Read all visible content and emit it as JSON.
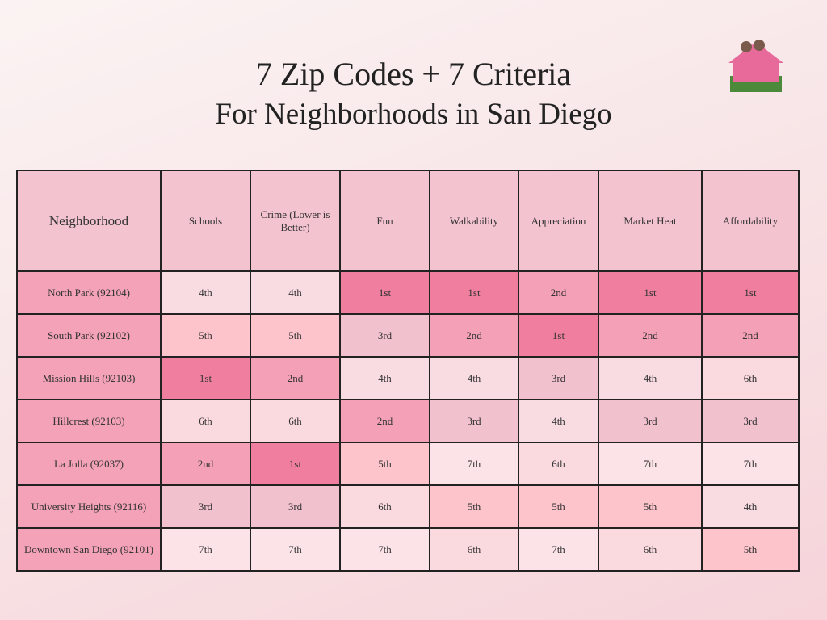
{
  "header": {
    "title": "7 Zip Codes + 7 Criteria",
    "subtitle": "For Neighborhoods in San Diego"
  },
  "table": {
    "columns": [
      "Neighborhood",
      "Schools",
      "Crime (Lower is Better)",
      "Fun",
      "Walkability",
      "Appreciation",
      "Market Heat",
      "Affordability"
    ],
    "rows": [
      [
        "North Park (92104)",
        "4th",
        "4th",
        "1st",
        "1st",
        "2nd",
        "1st",
        "1st"
      ],
      [
        "South Park (92102)",
        "5th",
        "5th",
        "3rd",
        "2nd",
        "1st",
        "2nd",
        "2nd"
      ],
      [
        "Mission Hills (92103)",
        "1st",
        "2nd",
        "4th",
        "4th",
        "3rd",
        "4th",
        "6th"
      ],
      [
        "Hillcrest (92103)",
        "6th",
        "6th",
        "2nd",
        "3rd",
        "4th",
        "3rd",
        "3rd"
      ],
      [
        "La Jolla (92037)",
        "2nd",
        "1st",
        "5th",
        "7th",
        "6th",
        "7th",
        "7th"
      ],
      [
        "University Heights (92116)",
        "3rd",
        "3rd",
        "6th",
        "5th",
        "5th",
        "5th",
        "4th"
      ],
      [
        "Downtown San Diego (92101)",
        "7th",
        "7th",
        "7th",
        "6th",
        "7th",
        "6th",
        "5th"
      ]
    ],
    "header_color": "#f3c3cf",
    "name_color": "#f3a2b7",
    "rank_colors": [
      "#f07f9f",
      "#f4a0b6",
      "#f2c1ce",
      "#f9dbe2",
      "#fdc4cb",
      "#fad9df",
      "#fbe3e7"
    ]
  }
}
